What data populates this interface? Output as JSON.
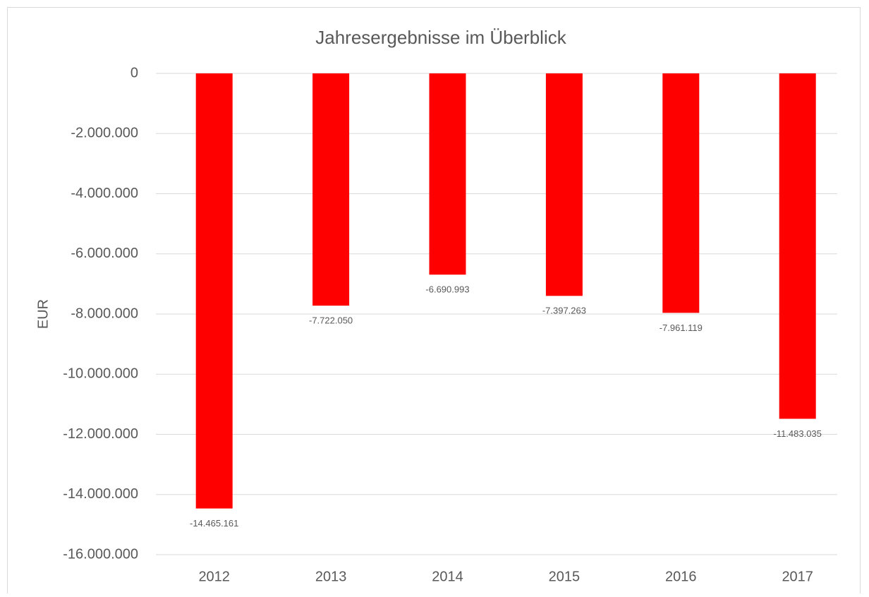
{
  "chart_data": {
    "type": "bar",
    "title": "Jahresergebnisse im Überblick",
    "y_label": "EUR",
    "categories": [
      "2012",
      "2013",
      "2014",
      "2015",
      "2016",
      "2017"
    ],
    "values": [
      -14465161,
      -7722050,
      -6690993,
      -7397263,
      -7961119,
      -11483035
    ],
    "value_labels": [
      "-14.465.161",
      "-7.722.050",
      "-6.690.993",
      "-7.397.263",
      "-7.961.119",
      "-11.483.035"
    ],
    "color": "#ff0000",
    "ylim": [
      -16000000,
      0
    ],
    "yticks": [
      0,
      {
        "value": -2000000,
        "label": "-2.000.000"
      },
      {
        "value": -4000000,
        "label": "-4.000.000"
      },
      {
        "value": -6000000,
        "label": "-6.000.000"
      },
      {
        "value": -8000000,
        "label": "-8.000.000"
      },
      {
        "value": -10000000,
        "label": "-10.000.000"
      },
      {
        "value": -12000000,
        "label": "-12.000.000"
      },
      {
        "value": -14000000,
        "label": "-14.000.000"
      },
      {
        "value": -16000000,
        "label": "-16.000.000"
      }
    ],
    "grid": true
  }
}
